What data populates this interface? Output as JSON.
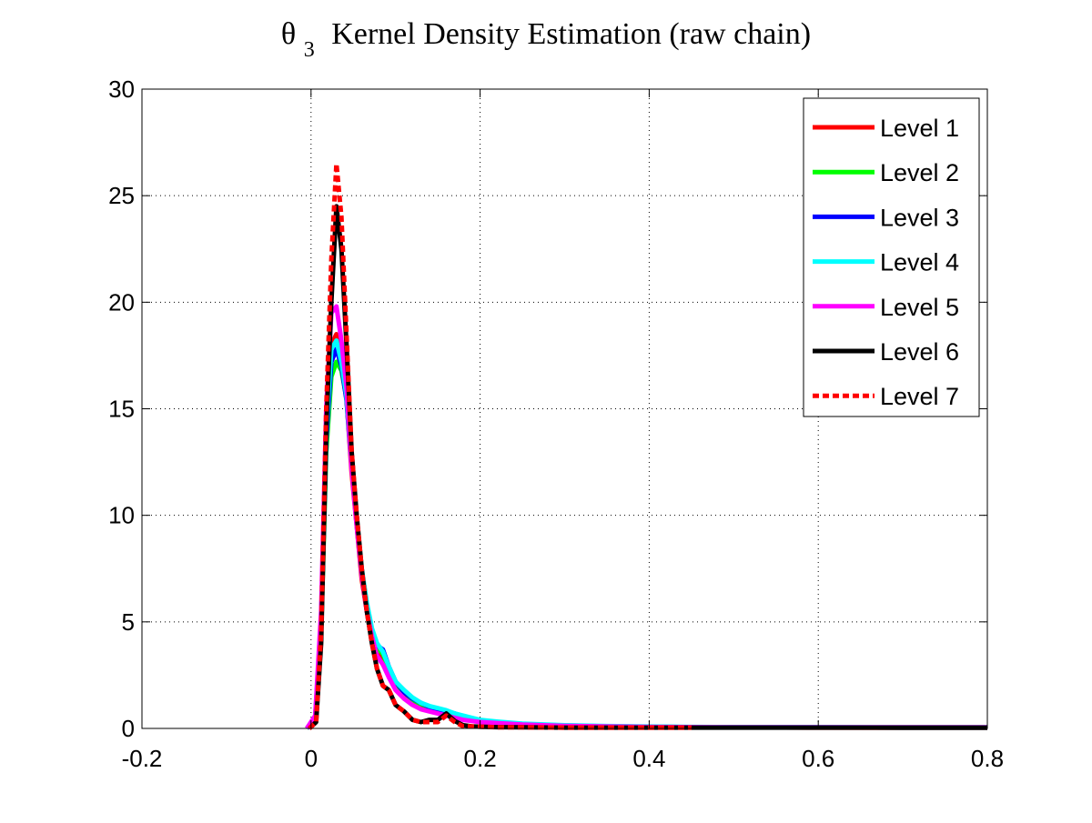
{
  "chart_data": {
    "type": "line",
    "title": "Kernel Density Estimation (raw chain)",
    "title_symbol": "θ",
    "title_subscript": "3",
    "xlabel": "",
    "ylabel": "",
    "xlim": [
      -0.2,
      0.8
    ],
    "ylim": [
      0,
      30
    ],
    "x_ticks": [
      -0.2,
      0,
      0.2,
      0.4,
      0.6,
      0.8
    ],
    "x_tick_labels": [
      "-0.2",
      "0",
      "0.2",
      "0.4",
      "0.6",
      "0.8"
    ],
    "y_ticks": [
      0,
      5,
      10,
      15,
      20,
      25,
      30
    ],
    "y_tick_labels": [
      "0",
      "5",
      "10",
      "15",
      "20",
      "25",
      "30"
    ],
    "grid": true,
    "legend_position": "top-right",
    "series": [
      {
        "name": "Level 1",
        "color": "#ff0000",
        "style": "solid",
        "x": [
          -0.005,
          0.005,
          0.012,
          0.018,
          0.024,
          0.03,
          0.036,
          0.042,
          0.048,
          0.054,
          0.06,
          0.066,
          0.072,
          0.078,
          0.085,
          0.092,
          0.1,
          0.11,
          0.12,
          0.13,
          0.14,
          0.15,
          0.16,
          0.17,
          0.18,
          0.19,
          0.2,
          0.22,
          0.25,
          0.3,
          0.35,
          0.4,
          0.45,
          0.5,
          0.6,
          0.7,
          0.8
        ],
        "y": [
          0,
          0.5,
          5,
          14,
          18,
          18.5,
          17,
          15.5,
          12,
          9.5,
          7,
          5.5,
          4.3,
          3.5,
          3.2,
          2.6,
          2,
          1.6,
          1.3,
          1.1,
          0.95,
          0.85,
          0.75,
          0.6,
          0.5,
          0.4,
          0.3,
          0.25,
          0.18,
          0.12,
          0.09,
          0.07,
          0.05,
          0.05,
          0.04,
          0.03,
          0.03
        ]
      },
      {
        "name": "Level 2",
        "color": "#00ff00",
        "style": "solid",
        "x": [
          -0.005,
          0.005,
          0.012,
          0.018,
          0.024,
          0.03,
          0.036,
          0.042,
          0.048,
          0.054,
          0.06,
          0.066,
          0.072,
          0.078,
          0.085,
          0.092,
          0.1,
          0.11,
          0.12,
          0.13,
          0.14,
          0.15,
          0.16,
          0.17,
          0.18,
          0.19,
          0.2,
          0.22,
          0.25,
          0.3,
          0.35,
          0.4,
          0.45,
          0.5,
          0.6,
          0.7,
          0.8
        ],
        "y": [
          0,
          0.4,
          4.5,
          13,
          16.5,
          17.2,
          16.8,
          15.5,
          12.5,
          9.8,
          7.4,
          5.8,
          4.6,
          3.8,
          3.5,
          2.8,
          2.1,
          1.7,
          1.35,
          1.15,
          1,
          0.9,
          0.8,
          0.65,
          0.55,
          0.45,
          0.35,
          0.28,
          0.2,
          0.13,
          0.1,
          0.08,
          0.06,
          0.05,
          0.05,
          0.04,
          0.04
        ]
      },
      {
        "name": "Level 3",
        "color": "#0000ff",
        "style": "solid",
        "x": [
          -0.005,
          0.005,
          0.012,
          0.018,
          0.024,
          0.03,
          0.036,
          0.042,
          0.048,
          0.054,
          0.06,
          0.066,
          0.072,
          0.078,
          0.085,
          0.092,
          0.1,
          0.11,
          0.12,
          0.13,
          0.14,
          0.15,
          0.16,
          0.17,
          0.18,
          0.19,
          0.2,
          0.22,
          0.25,
          0.3,
          0.35,
          0.4,
          0.45,
          0.5,
          0.6,
          0.7,
          0.8
        ],
        "y": [
          0,
          0.5,
          4.8,
          13.5,
          17.2,
          17.8,
          17,
          15.4,
          12.3,
          9.7,
          7.3,
          5.7,
          4.5,
          3.9,
          3.7,
          2.9,
          2.2,
          1.7,
          1.4,
          1.2,
          1,
          0.9,
          0.8,
          0.7,
          0.55,
          0.45,
          0.35,
          0.3,
          0.2,
          0.14,
          0.1,
          0.08,
          0.06,
          0.05,
          0.05,
          0.04,
          0.04
        ]
      },
      {
        "name": "Level 4",
        "color": "#00ffff",
        "style": "solid",
        "x": [
          -0.005,
          0.005,
          0.012,
          0.018,
          0.024,
          0.03,
          0.036,
          0.042,
          0.048,
          0.054,
          0.06,
          0.066,
          0.072,
          0.078,
          0.085,
          0.092,
          0.1,
          0.11,
          0.12,
          0.13,
          0.14,
          0.15,
          0.16,
          0.17,
          0.18,
          0.19,
          0.2,
          0.22,
          0.25,
          0.3,
          0.35,
          0.4,
          0.45,
          0.5,
          0.6,
          0.7,
          0.8
        ],
        "y": [
          0,
          0.5,
          5,
          14,
          17.8,
          18.2,
          17.2,
          15.6,
          12.4,
          9.8,
          7.5,
          5.9,
          4.7,
          4,
          3.6,
          2.9,
          2.2,
          1.8,
          1.45,
          1.2,
          1.05,
          0.95,
          0.85,
          0.7,
          0.6,
          0.5,
          0.4,
          0.32,
          0.22,
          0.15,
          0.11,
          0.09,
          0.07,
          0.06,
          0.06,
          0.05,
          0.05
        ]
      },
      {
        "name": "Level 5",
        "color": "#ff00ff",
        "style": "solid",
        "x": [
          -0.005,
          0.005,
          0.012,
          0.018,
          0.024,
          0.03,
          0.036,
          0.042,
          0.048,
          0.054,
          0.06,
          0.066,
          0.072,
          0.078,
          0.085,
          0.092,
          0.1,
          0.11,
          0.12,
          0.13,
          0.14,
          0.15,
          0.16,
          0.17,
          0.18,
          0.19,
          0.2,
          0.22,
          0.25,
          0.3,
          0.35,
          0.4,
          0.45,
          0.5,
          0.6,
          0.7,
          0.8
        ],
        "y": [
          0,
          0.6,
          5.5,
          15,
          19.5,
          19.8,
          18.2,
          16,
          12.2,
          9.5,
          7.2,
          5.5,
          4.3,
          3.4,
          3,
          2.4,
          1.8,
          1.4,
          1.1,
          0.9,
          0.8,
          0.7,
          0.6,
          0.5,
          0.4,
          0.35,
          0.3,
          0.25,
          0.18,
          0.12,
          0.09,
          0.07,
          0.06,
          0.05,
          0.05,
          0.05,
          0.05
        ]
      },
      {
        "name": "Level 6",
        "color": "#000000",
        "style": "solid",
        "x": [
          -0.002,
          0.006,
          0.012,
          0.018,
          0.024,
          0.03,
          0.036,
          0.042,
          0.048,
          0.054,
          0.06,
          0.066,
          0.072,
          0.078,
          0.085,
          0.092,
          0.1,
          0.11,
          0.12,
          0.13,
          0.14,
          0.15,
          0.16,
          0.17,
          0.18,
          0.19,
          0.2,
          0.22,
          0.25,
          0.3,
          0.35,
          0.4,
          0.45,
          0.5,
          0.6,
          0.7,
          0.8
        ],
        "y": [
          0,
          0.3,
          4,
          14,
          20,
          24.5,
          22.5,
          18,
          13,
          10,
          7.5,
          5.5,
          4,
          2.8,
          2,
          1.8,
          1.1,
          0.8,
          0.4,
          0.3,
          0.4,
          0.4,
          0.7,
          0.35,
          0.15,
          0.1,
          0.08,
          0.06,
          0.05,
          0.04,
          0.04,
          0.04,
          0.04,
          0.04,
          0.04,
          0.04,
          0.04
        ]
      },
      {
        "name": "Level 7",
        "color": "#ff0000",
        "style": "dashed",
        "x": [
          -0.002,
          0.006,
          0.012,
          0.018,
          0.024,
          0.03,
          0.036,
          0.042,
          0.048,
          0.054,
          0.06,
          0.066,
          0.072,
          0.078,
          0.085,
          0.092,
          0.1,
          0.11,
          0.12,
          0.13,
          0.14,
          0.15,
          0.16,
          0.17,
          0.18,
          0.19,
          0.2,
          0.22,
          0.25,
          0.3,
          0.35,
          0.4,
          0.45
        ],
        "y": [
          0,
          0.3,
          4.5,
          15,
          22,
          26.5,
          24,
          18.5,
          13,
          10,
          7.5,
          5.5,
          4,
          2.8,
          2,
          1.8,
          1.1,
          0.8,
          0.4,
          0.3,
          0.3,
          0.3,
          0.6,
          0.3,
          0.1,
          0.1,
          0.08,
          0.05,
          0.05,
          0.04,
          0.04,
          0.04,
          0.04
        ]
      }
    ]
  }
}
